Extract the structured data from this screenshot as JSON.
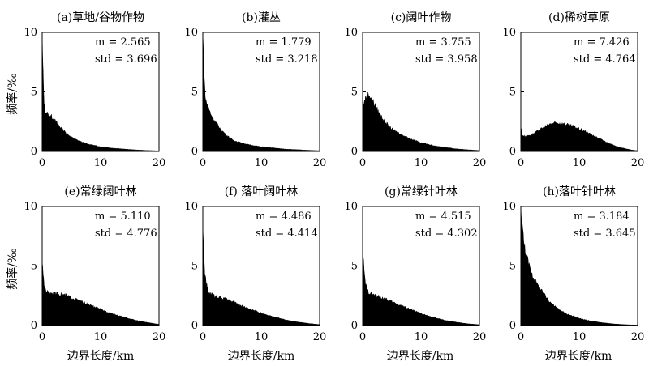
{
  "figure": {
    "ylabel": "频率/‰",
    "xlabel": "边界长度/km"
  },
  "chart_data": [
    {
      "type": "area",
      "title": "(a)草地/谷物作物",
      "m_label": "m = 2.565",
      "std_label": "std = 3.696",
      "xlim": [
        0,
        20
      ],
      "ylim": [
        0,
        10
      ],
      "xticks": [
        "0",
        "10",
        "20"
      ],
      "yticks": [
        "0",
        "5",
        "10"
      ],
      "x": [
        0,
        0.1,
        0.3,
        0.5,
        1,
        1.5,
        2,
        3,
        4,
        5,
        6,
        7,
        8,
        10,
        12,
        14,
        16,
        18,
        20
      ],
      "y": [
        10,
        7.4,
        4.3,
        3.4,
        3.1,
        3.0,
        2.7,
        2.1,
        1.6,
        1.2,
        0.95,
        0.75,
        0.6,
        0.4,
        0.28,
        0.2,
        0.13,
        0.08,
        0.05
      ]
    },
    {
      "type": "area",
      "title": "(b)灌丛",
      "m_label": "m = 1.779",
      "std_label": "std = 3.218",
      "xlim": [
        0,
        20
      ],
      "ylim": [
        0,
        10
      ],
      "xticks": [
        "0",
        "10",
        "20"
      ],
      "yticks": [
        "0",
        "5",
        "10"
      ],
      "x": [
        0,
        0.1,
        0.3,
        0.5,
        1,
        1.5,
        2,
        3,
        4,
        5,
        6,
        8,
        10,
        12,
        14,
        16,
        18,
        20
      ],
      "y": [
        10,
        8.5,
        5.5,
        4.3,
        3.6,
        3.0,
        2.6,
        1.9,
        1.4,
        1.0,
        0.8,
        0.55,
        0.4,
        0.3,
        0.2,
        0.15,
        0.1,
        0.06
      ]
    },
    {
      "type": "area",
      "title": "(c)阔叶作物",
      "m_label": "m = 3.755",
      "std_label": "std = 3.958",
      "xlim": [
        0,
        20
      ],
      "ylim": [
        0,
        10
      ],
      "xticks": [
        "0",
        "10",
        "20"
      ],
      "yticks": [
        "0",
        "5",
        "10"
      ],
      "x": [
        0,
        0.3,
        0.6,
        1,
        1.5,
        2,
        3,
        4,
        5,
        6,
        7,
        8,
        10,
        12,
        14,
        16,
        18,
        20
      ],
      "y": [
        3.9,
        4.2,
        4.6,
        4.8,
        4.5,
        4.0,
        3.1,
        2.4,
        1.9,
        1.6,
        1.35,
        1.1,
        0.75,
        0.5,
        0.35,
        0.22,
        0.14,
        0.08
      ]
    },
    {
      "type": "area",
      "title": "(d)稀树草原",
      "m_label": "m = 7.426",
      "std_label": "std = 4.764",
      "xlim": [
        0,
        20
      ],
      "ylim": [
        0,
        10
      ],
      "xticks": [
        "0",
        "10",
        "20"
      ],
      "yticks": [
        "0",
        "5",
        "10"
      ],
      "x": [
        0,
        0.2,
        0.5,
        1,
        2,
        3,
        4,
        5,
        6,
        7,
        8,
        9,
        10,
        11,
        12,
        13,
        14,
        15,
        16,
        17,
        18,
        19,
        20
      ],
      "y": [
        2.1,
        1.4,
        1.3,
        1.3,
        1.45,
        1.75,
        2.05,
        2.3,
        2.4,
        2.35,
        2.25,
        2.1,
        1.9,
        1.7,
        1.45,
        1.2,
        0.95,
        0.7,
        0.5,
        0.35,
        0.22,
        0.12,
        0.06
      ]
    },
    {
      "type": "area",
      "title": "(e)常绿阔叶林",
      "m_label": "m = 5.110",
      "std_label": "std = 4.776",
      "xlim": [
        0,
        20
      ],
      "ylim": [
        0,
        10
      ],
      "xticks": [
        "0",
        "10",
        "20"
      ],
      "yticks": [
        "0",
        "5",
        "10"
      ],
      "x": [
        0,
        0.1,
        0.3,
        0.6,
        1,
        2,
        3,
        4,
        5,
        6,
        7,
        8,
        10,
        12,
        14,
        16,
        18,
        20
      ],
      "y": [
        5.5,
        4.6,
        3.5,
        3.0,
        2.8,
        2.7,
        2.65,
        2.55,
        2.35,
        2.15,
        1.95,
        1.75,
        1.35,
        1.0,
        0.7,
        0.45,
        0.25,
        0.1
      ]
    },
    {
      "type": "area",
      "title": "(f) 落叶阔叶林",
      "m_label": "m = 4.486",
      "std_label": "std = 4.414",
      "xlim": [
        0,
        20
      ],
      "ylim": [
        0,
        10
      ],
      "xticks": [
        "0",
        "10",
        "20"
      ],
      "yticks": [
        "0",
        "5",
        "10"
      ],
      "x": [
        0,
        0.1,
        0.3,
        0.6,
        1,
        2,
        3,
        4,
        5,
        6,
        8,
        10,
        12,
        14,
        16,
        18,
        20
      ],
      "y": [
        8.8,
        6.5,
        4.6,
        3.5,
        2.8,
        2.5,
        2.35,
        2.2,
        2.0,
        1.8,
        1.4,
        1.05,
        0.75,
        0.5,
        0.32,
        0.18,
        0.08
      ]
    },
    {
      "type": "area",
      "title": "(g)常绿针叶林",
      "m_label": "m = 4.515",
      "std_label": "std = 4.302",
      "xlim": [
        0,
        20
      ],
      "ylim": [
        0,
        10
      ],
      "xticks": [
        "0",
        "10",
        "20"
      ],
      "yticks": [
        "0",
        "5",
        "10"
      ],
      "x": [
        0,
        0.1,
        0.3,
        0.6,
        1,
        2,
        3,
        4,
        5,
        6,
        8,
        10,
        12,
        14,
        16,
        18,
        20
      ],
      "y": [
        7.6,
        5.8,
        4.2,
        3.3,
        2.8,
        2.55,
        2.4,
        2.2,
        2.0,
        1.8,
        1.4,
        1.0,
        0.7,
        0.45,
        0.28,
        0.15,
        0.07
      ]
    },
    {
      "type": "area",
      "title": "(h)落叶针叶林",
      "m_label": "m = 3.184",
      "std_label": "std = 3.645",
      "xlim": [
        0,
        20
      ],
      "ylim": [
        0,
        10
      ],
      "xticks": [
        "0",
        "10",
        "20"
      ],
      "yticks": [
        "0",
        "5",
        "10"
      ],
      "x": [
        0,
        0.2,
        0.5,
        1,
        1.5,
        2,
        3,
        4,
        5,
        6,
        7,
        8,
        10,
        12,
        14,
        16,
        18,
        20
      ],
      "y": [
        10,
        8.8,
        7.0,
        5.8,
        4.9,
        4.2,
        3.3,
        2.6,
        2.0,
        1.55,
        1.2,
        0.95,
        0.6,
        0.38,
        0.23,
        0.13,
        0.07,
        0.04
      ]
    }
  ]
}
